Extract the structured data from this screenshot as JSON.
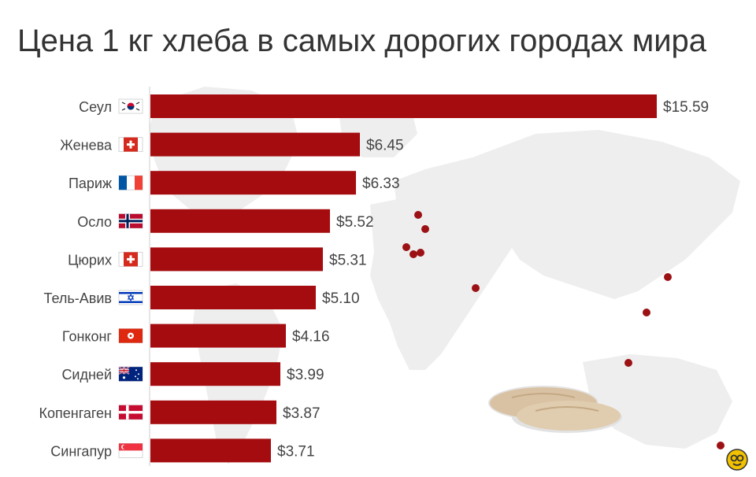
{
  "chart_data": {
    "type": "bar",
    "orientation": "horizontal",
    "title": "Цена 1 кг хлеба в самых дорогих городах мира",
    "categories": [
      "Сеул",
      "Женева",
      "Париж",
      "Осло",
      "Цюрих",
      "Тель-Авив",
      "Гонконг",
      "Сидней",
      "Копенгаген",
      "Сингапур"
    ],
    "values": [
      15.59,
      6.45,
      6.33,
      5.52,
      5.31,
      5.1,
      4.16,
      3.99,
      3.87,
      3.71
    ],
    "value_labels": [
      "$15.59",
      "$6.45",
      "$6.33",
      "$5.52",
      "$5.31",
      "$5.10",
      "$4.16",
      "$3.99",
      "$3.87",
      "$3.71"
    ],
    "flag_icons": [
      "south-korea-flag-icon",
      "switzerland-flag-icon",
      "france-flag-icon",
      "norway-flag-icon",
      "switzerland-flag-icon",
      "israel-flag-icon",
      "hong-kong-flag-icon",
      "australia-flag-icon",
      "denmark-flag-icon",
      "singapore-flag-icon"
    ],
    "xlim": [
      0,
      15.59
    ],
    "xlabel": "",
    "ylabel": "",
    "grid": false,
    "bar_color": "#a50c0f"
  },
  "colors": {
    "bar": "#a50c0f",
    "map_land": "#ececec",
    "map_dot": "#9b1114",
    "title": "#333333",
    "label": "#444444",
    "badge": "#f2c200"
  },
  "decor": {
    "background": "world-map",
    "bread_icon": "bread-loaves-icon",
    "badge_icon": "site-logo-badge-icon"
  }
}
